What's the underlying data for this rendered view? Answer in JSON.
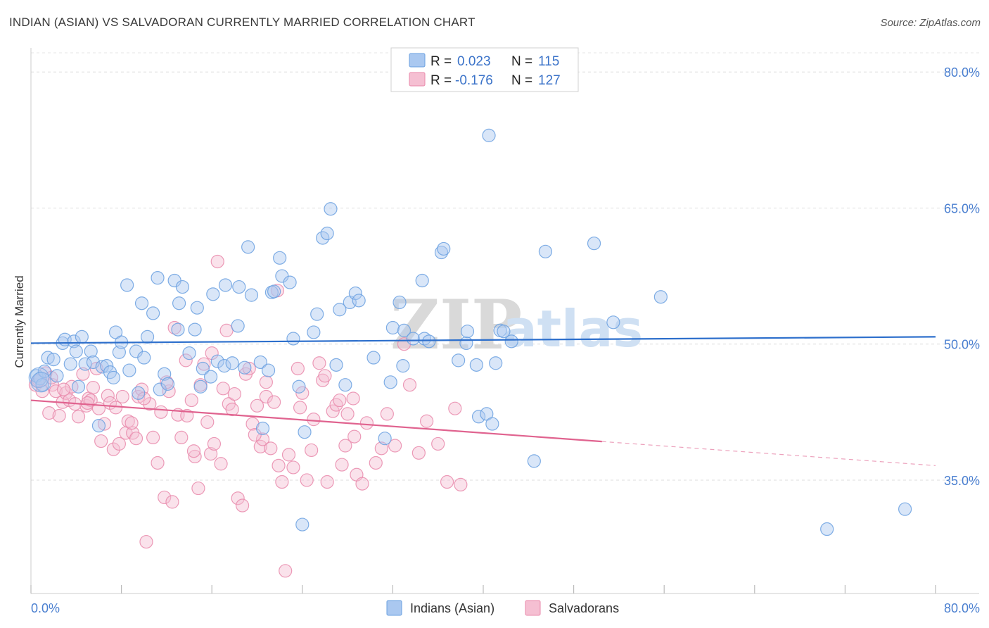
{
  "title": "INDIAN (ASIAN) VS SALVADORAN CURRENTLY MARRIED CORRELATION CHART",
  "source": "Source: ZipAtlas.com",
  "watermark": {
    "part1": "ZIP",
    "part2": "atlas"
  },
  "legend": {
    "rows": [
      {
        "r_label": "R =",
        "r_value": "0.023",
        "n_label": "N =",
        "n_value": "115"
      },
      {
        "r_label": "R =",
        "r_value": "-0.176",
        "n_label": "N =",
        "n_value": "127"
      }
    ]
  },
  "bottom_legend": [
    "Indians (Asian)",
    "Salvadorans"
  ],
  "colors": {
    "blue": "#6aa0e0",
    "blue_fill": "#aac8f0",
    "blue_line": "#2d6fcc",
    "pink": "#e98aab",
    "pink_fill": "#f5bfd2",
    "pink_line": "#e0638f"
  },
  "chart_data": {
    "type": "scatter",
    "ylabel": "Currently Married",
    "x_tick_labels": [
      "0.0%",
      "80.0%"
    ],
    "y_tick_labels": [
      "80.0%",
      "65.0%",
      "50.0%",
      "35.0%"
    ],
    "y_ticks": [
      80,
      65,
      50,
      35
    ],
    "xlim": [
      0,
      80
    ],
    "ylim": [
      22.5,
      82.5
    ],
    "grid": true,
    "series": [
      {
        "name": "Indians (Asian)",
        "trend": {
          "x0": 0,
          "y0": 50.1,
          "x1": 80,
          "y1": 50.8,
          "solid_until": 80
        },
        "points": [
          [
            0.5,
            46.5
          ],
          [
            0.8,
            46.2
          ],
          [
            1.0,
            45.5
          ],
          [
            1.2,
            47.0
          ],
          [
            1.5,
            48.5
          ],
          [
            2.0,
            48.3
          ],
          [
            2.3,
            46.5
          ],
          [
            2.8,
            50.1
          ],
          [
            3.0,
            50.5
          ],
          [
            3.5,
            47.8
          ],
          [
            3.8,
            50.3
          ],
          [
            4.0,
            49.2
          ],
          [
            4.2,
            45.3
          ],
          [
            4.5,
            50.8
          ],
          [
            4.8,
            47.8
          ],
          [
            5.3,
            49.2
          ],
          [
            5.5,
            48.0
          ],
          [
            6.0,
            41.0
          ],
          [
            6.3,
            47.5
          ],
          [
            6.7,
            47.6
          ],
          [
            7.0,
            46.9
          ],
          [
            7.3,
            46.3
          ],
          [
            7.5,
            51.3
          ],
          [
            7.8,
            49.1
          ],
          [
            8.0,
            50.2
          ],
          [
            8.5,
            56.5
          ],
          [
            8.7,
            47.1
          ],
          [
            9.3,
            49.2
          ],
          [
            9.5,
            44.6
          ],
          [
            9.8,
            54.5
          ],
          [
            10.0,
            48.5
          ],
          [
            10.3,
            50.8
          ],
          [
            10.8,
            53.4
          ],
          [
            11.2,
            57.3
          ],
          [
            11.4,
            45.0
          ],
          [
            11.8,
            46.7
          ],
          [
            12.1,
            45.6
          ],
          [
            12.7,
            57.0
          ],
          [
            13.0,
            51.6
          ],
          [
            13.1,
            54.5
          ],
          [
            13.4,
            56.3
          ],
          [
            14.0,
            49.0
          ],
          [
            14.5,
            51.6
          ],
          [
            14.7,
            54.0
          ],
          [
            15.0,
            45.3
          ],
          [
            15.2,
            47.3
          ],
          [
            15.9,
            46.4
          ],
          [
            16.1,
            55.5
          ],
          [
            16.5,
            48.1
          ],
          [
            17.1,
            47.6
          ],
          [
            17.2,
            56.5
          ],
          [
            17.8,
            47.9
          ],
          [
            18.3,
            52.0
          ],
          [
            18.4,
            56.3
          ],
          [
            18.9,
            47.4
          ],
          [
            19.2,
            60.7
          ],
          [
            19.5,
            55.4
          ],
          [
            20.3,
            48.0
          ],
          [
            20.5,
            40.7
          ],
          [
            21.0,
            47.1
          ],
          [
            21.3,
            55.7
          ],
          [
            21.5,
            55.8
          ],
          [
            22.0,
            59.5
          ],
          [
            22.2,
            57.5
          ],
          [
            22.9,
            56.8
          ],
          [
            23.2,
            50.6
          ],
          [
            23.7,
            45.3
          ],
          [
            24.0,
            30.1
          ],
          [
            24.2,
            40.3
          ],
          [
            25.0,
            51.3
          ],
          [
            25.3,
            53.3
          ],
          [
            25.8,
            61.7
          ],
          [
            26.2,
            62.2
          ],
          [
            26.5,
            64.9
          ],
          [
            27.0,
            47.7
          ],
          [
            27.3,
            53.8
          ],
          [
            27.8,
            45.5
          ],
          [
            28.2,
            54.6
          ],
          [
            28.7,
            55.6
          ],
          [
            29.0,
            54.8
          ],
          [
            30.3,
            48.5
          ],
          [
            31.3,
            39.6
          ],
          [
            31.8,
            45.8
          ],
          [
            32.0,
            51.8
          ],
          [
            32.6,
            54.6
          ],
          [
            32.9,
            47.6
          ],
          [
            33.0,
            51.5
          ],
          [
            33.8,
            50.6
          ],
          [
            34.6,
            57.0
          ],
          [
            34.8,
            50.6
          ],
          [
            35.2,
            50.3
          ],
          [
            36.3,
            60.1
          ],
          [
            36.5,
            60.5
          ],
          [
            37.8,
            48.2
          ],
          [
            38.5,
            50.1
          ],
          [
            38.6,
            51.4
          ],
          [
            39.4,
            47.7
          ],
          [
            39.6,
            42.0
          ],
          [
            40.3,
            42.3
          ],
          [
            40.5,
            73.0
          ],
          [
            40.8,
            41.2
          ],
          [
            41.1,
            47.9
          ],
          [
            41.5,
            51.5
          ],
          [
            41.8,
            51.4
          ],
          [
            42.5,
            50.3
          ],
          [
            44.5,
            37.1
          ],
          [
            45.5,
            60.2
          ],
          [
            49.8,
            61.1
          ],
          [
            51.5,
            52.4
          ],
          [
            55.7,
            55.2
          ],
          [
            70.4,
            29.6
          ],
          [
            77.3,
            31.8
          ]
        ]
      },
      {
        "name": "Salvadorans",
        "trend": {
          "x0": 0,
          "y0": 43.8,
          "x1": 80,
          "y1": 36.6,
          "solid_until": 50.5
        },
        "points": [
          [
            0.4,
            45.5
          ],
          [
            0.7,
            46.0
          ],
          [
            1.0,
            44.8
          ],
          [
            1.3,
            46.8
          ],
          [
            1.6,
            42.4
          ],
          [
            1.9,
            45.5
          ],
          [
            2.2,
            44.8
          ],
          [
            2.5,
            42.1
          ],
          [
            2.8,
            43.6
          ],
          [
            3.1,
            44.6
          ],
          [
            3.4,
            43.8
          ],
          [
            3.6,
            45.3
          ],
          [
            3.9,
            43.4
          ],
          [
            4.2,
            42.0
          ],
          [
            4.6,
            46.7
          ],
          [
            4.9,
            43.2
          ],
          [
            5.1,
            44.0
          ],
          [
            5.3,
            43.8
          ],
          [
            5.5,
            45.2
          ],
          [
            5.8,
            47.3
          ],
          [
            6.2,
            39.3
          ],
          [
            6.5,
            41.2
          ],
          [
            6.8,
            44.3
          ],
          [
            7.0,
            43.5
          ],
          [
            7.3,
            38.4
          ],
          [
            7.5,
            43.0
          ],
          [
            7.8,
            39.0
          ],
          [
            8.1,
            44.2
          ],
          [
            8.4,
            40.2
          ],
          [
            8.6,
            41.5
          ],
          [
            9.0,
            40.2
          ],
          [
            9.3,
            39.6
          ],
          [
            9.5,
            44.2
          ],
          [
            9.8,
            45.0
          ],
          [
            10.2,
            28.2
          ],
          [
            10.5,
            43.4
          ],
          [
            10.8,
            39.7
          ],
          [
            11.2,
            36.9
          ],
          [
            11.5,
            42.5
          ],
          [
            11.8,
            33.1
          ],
          [
            12.2,
            44.8
          ],
          [
            12.5,
            32.6
          ],
          [
            12.7,
            51.8
          ],
          [
            13.0,
            42.2
          ],
          [
            13.3,
            39.7
          ],
          [
            13.7,
            48.2
          ],
          [
            14.2,
            43.8
          ],
          [
            14.5,
            37.6
          ],
          [
            14.8,
            34.1
          ],
          [
            15.0,
            45.5
          ],
          [
            15.3,
            47.8
          ],
          [
            15.6,
            41.4
          ],
          [
            15.9,
            37.9
          ],
          [
            16.2,
            39.0
          ],
          [
            16.5,
            59.1
          ],
          [
            16.8,
            36.8
          ],
          [
            17.3,
            51.5
          ],
          [
            17.5,
            43.4
          ],
          [
            17.8,
            42.8
          ],
          [
            18.3,
            33.0
          ],
          [
            18.7,
            32.2
          ],
          [
            19.0,
            46.7
          ],
          [
            19.3,
            47.3
          ],
          [
            19.6,
            41.2
          ],
          [
            20.0,
            43.2
          ],
          [
            20.3,
            38.7
          ],
          [
            20.5,
            39.5
          ],
          [
            20.8,
            44.2
          ],
          [
            21.2,
            38.5
          ],
          [
            21.5,
            43.6
          ],
          [
            21.9,
            36.6
          ],
          [
            22.2,
            34.8
          ],
          [
            22.5,
            25.0
          ],
          [
            22.8,
            37.8
          ],
          [
            23.2,
            36.4
          ],
          [
            23.6,
            47.3
          ],
          [
            24.0,
            44.6
          ],
          [
            24.4,
            35.0
          ],
          [
            25.0,
            41.7
          ],
          [
            25.5,
            47.9
          ],
          [
            25.8,
            46.0
          ],
          [
            26.2,
            34.8
          ],
          [
            26.7,
            42.6
          ],
          [
            27.0,
            43.3
          ],
          [
            27.3,
            43.8
          ],
          [
            27.5,
            36.7
          ],
          [
            28.0,
            42.3
          ],
          [
            28.5,
            44.0
          ],
          [
            28.8,
            35.6
          ],
          [
            29.3,
            34.6
          ],
          [
            29.7,
            41.3
          ],
          [
            30.5,
            36.9
          ],
          [
            31.0,
            38.5
          ],
          [
            31.5,
            42.3
          ],
          [
            32.2,
            38.8
          ],
          [
            33.0,
            50.0
          ],
          [
            33.5,
            45.5
          ],
          [
            34.3,
            38.0
          ],
          [
            35.0,
            41.5
          ],
          [
            36.0,
            39.0
          ],
          [
            36.8,
            34.8
          ],
          [
            37.5,
            42.9
          ],
          [
            38.0,
            34.5
          ],
          [
            0.6,
            45.9
          ],
          [
            1.8,
            46.3
          ],
          [
            2.9,
            45.0
          ],
          [
            5.0,
            43.5
          ],
          [
            6.0,
            42.9
          ],
          [
            8.9,
            41.3
          ],
          [
            10.0,
            44.0
          ],
          [
            12.0,
            45.8
          ],
          [
            13.8,
            42.1
          ],
          [
            14.4,
            38.2
          ],
          [
            16.0,
            49.0
          ],
          [
            17.0,
            45.1
          ],
          [
            18.0,
            44.5
          ],
          [
            19.8,
            40.0
          ],
          [
            20.8,
            45.8
          ],
          [
            21.8,
            55.9
          ],
          [
            23.8,
            43.0
          ],
          [
            24.8,
            38.3
          ],
          [
            26.0,
            46.5
          ],
          [
            27.8,
            38.8
          ],
          [
            28.6,
            39.8
          ]
        ]
      }
    ]
  }
}
